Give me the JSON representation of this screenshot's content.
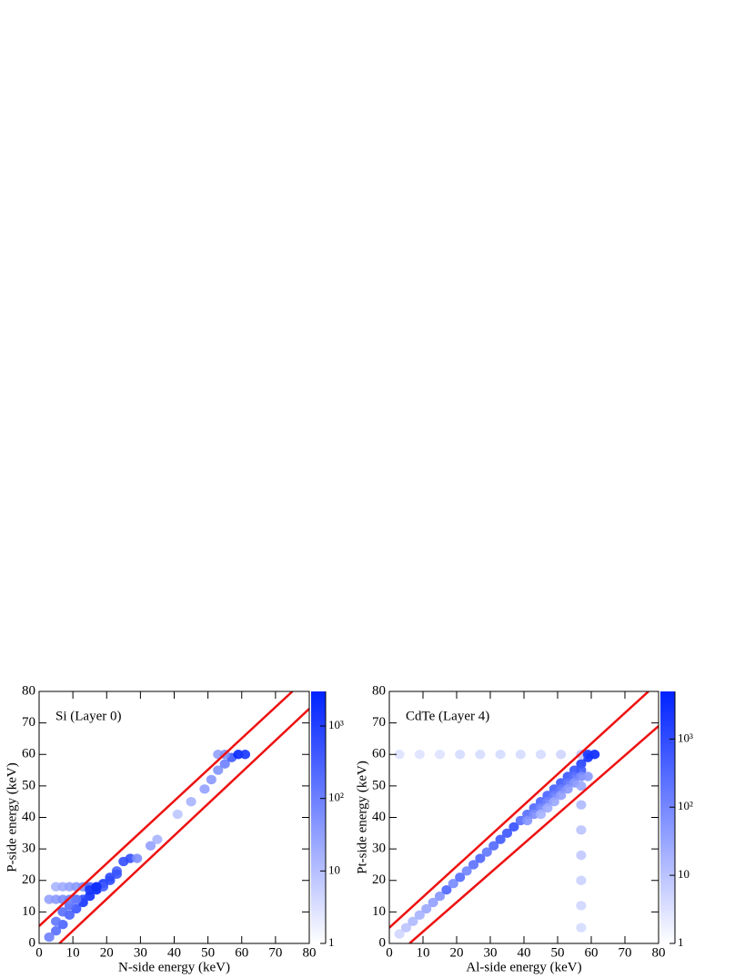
{
  "chart_data": [
    {
      "type": "heatmap",
      "title": "Si (Layer 0)",
      "x_label": "N-side energy (keV)",
      "y_label": "P-side energy (keV)",
      "xlim": [
        0,
        80
      ],
      "ylim": [
        0,
        80
      ],
      "xticks": [
        0,
        10,
        20,
        30,
        40,
        50,
        60,
        70,
        80
      ],
      "yticks": [
        0,
        10,
        20,
        30,
        40,
        50,
        60,
        70,
        80
      ],
      "zlim": [
        1,
        3000
      ],
      "zscale": "log",
      "color": "#0022ff",
      "zticks": [
        1,
        10,
        {
          "value": 100,
          "label": "10²"
        },
        {
          "value": 1000,
          "label": "10³"
        }
      ],
      "bin_width": 2,
      "cells": {
        "x": [
          5,
          7,
          9,
          11,
          13,
          15,
          17,
          19,
          21,
          23,
          25,
          27,
          7,
          9,
          11,
          13,
          3,
          5,
          7,
          9,
          11,
          5,
          7,
          9,
          11,
          13,
          15,
          17,
          19,
          33,
          35,
          41,
          45,
          49,
          51,
          53,
          55,
          57,
          59,
          61,
          53,
          55,
          29,
          3,
          5,
          15,
          17,
          21,
          23
        ],
        "y": [
          4,
          6,
          9,
          11,
          13,
          15,
          17,
          19,
          21,
          23,
          26,
          27,
          10,
          12,
          14,
          14,
          14,
          14,
          14,
          14,
          14,
          18,
          18,
          18,
          18,
          18,
          18,
          18,
          18,
          31,
          33,
          41,
          45,
          49,
          52,
          55,
          57,
          59,
          60,
          60,
          60,
          60,
          27,
          2,
          7,
          17,
          18,
          20,
          22
        ],
        "values": [
          200,
          300,
          300,
          500,
          1500,
          2000,
          2500,
          1200,
          800,
          300,
          600,
          600,
          200,
          200,
          400,
          800,
          30,
          40,
          60,
          80,
          120,
          15,
          20,
          30,
          40,
          60,
          300,
          800,
          400,
          30,
          15,
          8,
          15,
          30,
          40,
          50,
          100,
          400,
          2500,
          1500,
          30,
          50,
          60,
          100,
          150,
          1500,
          2000,
          700,
          500
        ]
      },
      "lines": [
        {
          "x": [
            0,
            75
          ],
          "y": [
            5.5,
            80
          ]
        },
        {
          "x": [
            6,
            80
          ],
          "y": [
            0,
            74.5
          ]
        }
      ],
      "line_color": "#ee1111"
    },
    {
      "type": "heatmap",
      "title": "CdTe (Layer 4)",
      "x_label": "Al-side energy (keV)",
      "y_label": "Pt-side energy (keV)",
      "xlim": [
        0,
        80
      ],
      "ylim": [
        0,
        80
      ],
      "xticks": [
        0,
        10,
        20,
        30,
        40,
        50,
        60,
        70,
        80
      ],
      "yticks": [
        0,
        10,
        20,
        30,
        40,
        50,
        60,
        70,
        80
      ],
      "zlim": [
        1,
        5000
      ],
      "zscale": "log",
      "color": "#0022ff",
      "zticks": [
        1,
        10,
        {
          "value": 100,
          "label": "10²"
        },
        {
          "value": 1000,
          "label": "10³"
        }
      ],
      "bin_width": 2,
      "cells": {
        "x": [
          3,
          5,
          7,
          9,
          11,
          13,
          15,
          17,
          19,
          21,
          23,
          25,
          27,
          29,
          31,
          33,
          35,
          37,
          39,
          41,
          43,
          45,
          47,
          49,
          51,
          53,
          55,
          57,
          59,
          61,
          41,
          43,
          45,
          47,
          49,
          51,
          53,
          55,
          57,
          45,
          47,
          49,
          51,
          53,
          55,
          57,
          3,
          9,
          15,
          21,
          27,
          33,
          39,
          45,
          51,
          57,
          57,
          57,
          57,
          57,
          57,
          57,
          57,
          59,
          59
        ],
        "y": [
          3,
          5,
          7,
          9,
          11,
          13,
          15,
          17,
          19,
          21,
          23,
          25,
          27,
          29,
          31,
          33,
          35,
          37,
          39,
          41,
          43,
          45,
          47,
          49,
          51,
          53,
          55,
          57,
          59,
          60,
          39,
          41,
          43,
          45,
          47,
          49,
          51,
          53,
          55,
          41,
          43,
          45,
          47,
          49,
          51,
          53,
          60,
          60,
          60,
          60,
          60,
          60,
          60,
          60,
          60,
          60,
          5,
          12,
          20,
          28,
          36,
          44,
          50,
          53,
          60
        ],
        "values": [
          5,
          10,
          15,
          20,
          30,
          40,
          60,
          400,
          100,
          300,
          120,
          250,
          400,
          200,
          350,
          600,
          700,
          900,
          300,
          300,
          350,
          400,
          450,
          500,
          600,
          700,
          800,
          1500,
          3000,
          4000,
          60,
          80,
          100,
          120,
          140,
          160,
          200,
          250,
          600,
          20,
          25,
          30,
          40,
          50,
          60,
          80,
          3,
          3,
          3,
          4,
          4,
          4,
          4,
          4,
          5,
          8,
          4,
          5,
          6,
          8,
          10,
          15,
          30,
          50,
          2500
        ]
      },
      "lines": [
        {
          "x": [
            0,
            77
          ],
          "y": [
            5,
            80
          ]
        },
        {
          "x": [
            6,
            80
          ],
          "y": [
            0,
            69
          ]
        }
      ],
      "line_color": "#ee1111"
    }
  ]
}
